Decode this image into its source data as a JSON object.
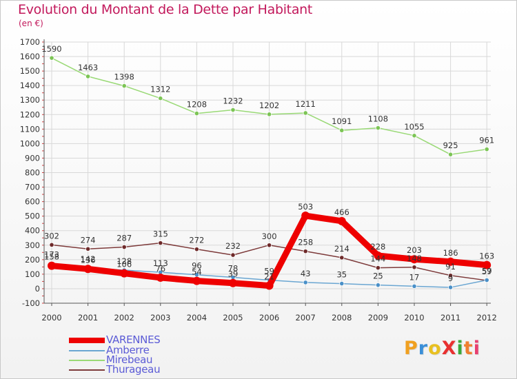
{
  "header": {
    "title": "Evolution du Montant de la Dette par Habitant",
    "unit": "(en €)"
  },
  "logo": {
    "text": "ProXiti",
    "letters": [
      "P",
      "r",
      "o",
      "X",
      "i",
      "t",
      "i"
    ],
    "colors": [
      "#f0a020",
      "#3a8fd8",
      "#e8c020",
      "#e83030",
      "#3aa83a",
      "#f08030",
      "#e84070"
    ]
  },
  "chart_data": {
    "type": "line",
    "title": "Evolution du Montant de la Dette par Habitant",
    "ylabel": "(en €)",
    "xlabel": "",
    "x": [
      "2000",
      "2001",
      "2002",
      "2003",
      "2004",
      "2005",
      "2006",
      "2007",
      "2008",
      "2009",
      "2010",
      "2011",
      "2012"
    ],
    "ylim": [
      -100,
      1700
    ],
    "yticks": [
      "-100",
      "0",
      "100",
      "200",
      "300",
      "400",
      "500",
      "600",
      "700",
      "800",
      "900",
      "1000",
      "1100",
      "1200",
      "1300",
      "1400",
      "1500",
      "1600",
      "1700"
    ],
    "grid": true,
    "legend": "bottom-left",
    "series": [
      {
        "name": "Mirebeau",
        "color": "#99d975",
        "marker": "#7cc455",
        "values": [
          1590,
          1463,
          1398,
          1312,
          1208,
          1232,
          1202,
          1211,
          1091,
          1108,
          1055,
          925,
          961
        ],
        "labels": [
          "1590",
          "1463",
          "1398",
          "1312",
          "1208",
          "1232",
          "1202",
          "1211",
          "1091",
          "1108",
          "1055",
          "925",
          "961"
        ]
      },
      {
        "name": "Thurageau",
        "color": "#7d3a3a",
        "marker": "#6e2a2a",
        "values": [
          302,
          274,
          287,
          315,
          272,
          232,
          300,
          258,
          214,
          144,
          148,
          91,
          57
        ],
        "labels": [
          "302",
          "274",
          "287",
          "315",
          "272",
          "232",
          "300",
          "258",
          "214",
          "144",
          "148",
          "91",
          "57"
        ]
      },
      {
        "name": "Amberre",
        "color": "#6aa6d2",
        "marker": "#4a90c8",
        "values": [
          173,
          142,
          128,
          113,
          96,
          78,
          59,
          43,
          35,
          25,
          17,
          9,
          59
        ],
        "labels": [
          "173",
          "142",
          "128",
          "113",
          "96",
          "78",
          "59",
          "43",
          "35",
          "25",
          "17",
          "9",
          "59"
        ]
      },
      {
        "name": "VARENNES",
        "color": "#ee0000",
        "marker": "#ee0000",
        "values": [
          158,
          136,
          106,
          76,
          54,
          39,
          21,
          503,
          466,
          228,
          203,
          186,
          163
        ],
        "labels": [
          "158",
          "136",
          "106",
          "76",
          "54",
          "39",
          "21",
          "503",
          "466",
          "228",
          "203",
          "186",
          "163"
        ]
      }
    ]
  },
  "legend": {
    "items": [
      {
        "label": "VARENNES",
        "color": "#ee0000"
      },
      {
        "label": "Amberre",
        "color": "#6aa6d2"
      },
      {
        "label": "Mirebeau",
        "color": "#99d975"
      },
      {
        "label": "Thurageau",
        "color": "#7d3a3a"
      }
    ]
  }
}
